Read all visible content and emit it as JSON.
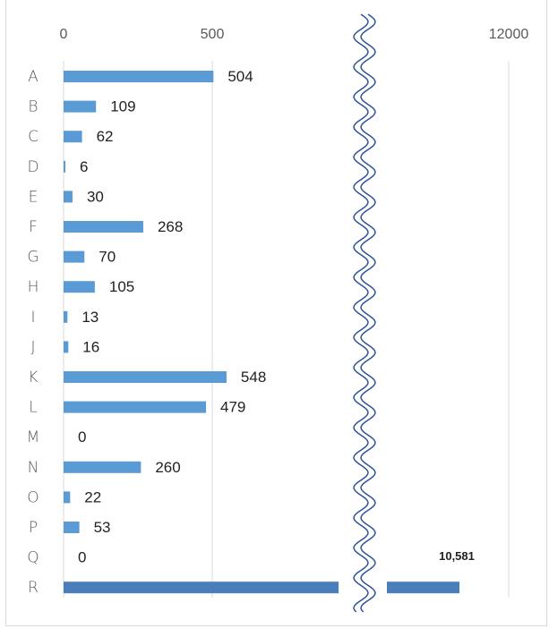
{
  "chart_data": {
    "type": "bar",
    "orientation": "horizontal",
    "broken_axis": true,
    "categories": [
      "A",
      "B",
      "C",
      "D",
      "E",
      "F",
      "G",
      "H",
      "I",
      "J",
      "K",
      "L",
      "M",
      "N",
      "O",
      "P",
      "Q",
      "R"
    ],
    "values": [
      504,
      109,
      62,
      6,
      30,
      268,
      70,
      105,
      13,
      16,
      548,
      479,
      0,
      260,
      22,
      53,
      0,
      10581
    ],
    "value_labels": [
      "504",
      "109",
      "62",
      "6",
      "30",
      "268",
      "70",
      "105",
      "13",
      "16",
      "548",
      "479",
      "0",
      "260",
      "22",
      "53",
      "0",
      "10,581"
    ],
    "x_ticks": [
      "0",
      "500",
      "12000"
    ],
    "xlim_left_segment": [
      0,
      500
    ],
    "x_tick_right": 12000,
    "grid": true,
    "bar_color": "#5b9bd5",
    "highlight_bar_color": "#4a7ebb",
    "break_line_color": "#2f5597"
  }
}
